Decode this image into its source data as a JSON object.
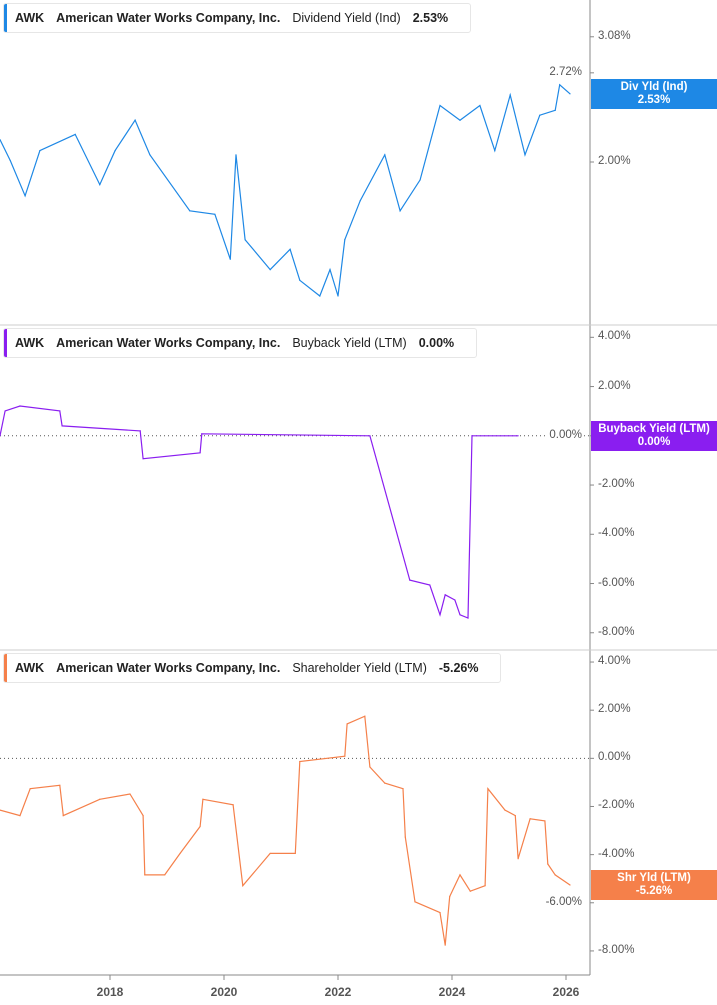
{
  "chart_data": [
    {
      "type": "line",
      "ticker": "AWK",
      "company": "American Water Works Company, Inc.",
      "metric": "Dividend Yield (Ind)",
      "value_label": "2.53%",
      "tag_label": "Div Yld (Ind)",
      "tag_value": "2.53%",
      "color": "#1e88e5",
      "scale": "log",
      "ylim": [
        1.15,
        3.25
      ],
      "yticks": [
        "3.08%",
        "2.72%",
        "2.00%"
      ],
      "ytick_values": [
        3.08,
        2.72,
        2.0
      ],
      "x": [
        2016.07,
        2016.25,
        2016.51,
        2016.77,
        2017.39,
        2017.82,
        2018.09,
        2018.44,
        2018.7,
        2019.4,
        2019.84,
        2020.11,
        2020.21,
        2020.37,
        2020.81,
        2021.16,
        2021.33,
        2021.68,
        2021.86,
        2022.0,
        2022.12,
        2022.39,
        2022.82,
        2023.09,
        2023.44,
        2023.79,
        2024.14,
        2024.49,
        2024.75,
        2025.02,
        2025.28,
        2025.54,
        2025.81,
        2025.89,
        2026.07
      ],
      "y": [
        2.16,
        2.01,
        1.78,
        2.08,
        2.2,
        1.85,
        2.08,
        2.31,
        2.05,
        1.69,
        1.67,
        1.43,
        2.05,
        1.53,
        1.38,
        1.48,
        1.33,
        1.26,
        1.38,
        1.26,
        1.53,
        1.75,
        2.05,
        1.69,
        1.88,
        2.43,
        2.31,
        2.43,
        2.08,
        2.52,
        2.05,
        2.35,
        2.39,
        2.61,
        2.53
      ]
    },
    {
      "type": "line",
      "ticker": "AWK",
      "company": "American Water Works Company, Inc.",
      "metric": "Buyback Yield (LTM)",
      "value_label": "0.00%",
      "tag_label": "Buyback Yield (LTM)",
      "tag_value": "0.00%",
      "color": "#8a1ef0",
      "ylim": [
        -8.7,
        4.5
      ],
      "zero_line": true,
      "yticks": [
        "4.00%",
        "2.00%",
        "0.00%",
        "-2.00%",
        "-4.00%",
        "-6.00%",
        "-8.00%"
      ],
      "ytick_values": [
        4,
        2,
        0,
        -2,
        -4,
        -6,
        -8
      ],
      "x": [
        2016.07,
        2016.16,
        2016.42,
        2017.12,
        2017.16,
        2018.53,
        2018.58,
        2019.58,
        2019.61,
        2022.56,
        2023.26,
        2023.61,
        2023.79,
        2023.88,
        2024.05,
        2024.14,
        2024.28,
        2024.35,
        2025.16
      ],
      "y": [
        0,
        1.01,
        1.21,
        1.01,
        0.4,
        0.2,
        -0.93,
        -0.69,
        0.08,
        0,
        -5.86,
        -6.06,
        -7.27,
        -6.46,
        -6.67,
        -7.27,
        -7.4,
        0,
        0
      ]
    },
    {
      "type": "line",
      "ticker": "AWK",
      "company": "American Water Works Company, Inc.",
      "metric": "Shareholder Yield (LTM)",
      "value_label": "-5.26%",
      "tag_label": "Shr Yld (LTM)",
      "tag_value": "-5.26%",
      "color": "#f5804a",
      "ylim": [
        -9,
        4.5
      ],
      "zero_line": true,
      "yticks": [
        "4.00%",
        "2.00%",
        "0.00%",
        "-2.00%",
        "-4.00%",
        "-6.00%",
        "-8.00%"
      ],
      "ytick_values": [
        4,
        2,
        0,
        -2,
        -4,
        -6,
        -8
      ],
      "x": [
        2016.07,
        2016.42,
        2016.6,
        2017.12,
        2017.18,
        2017.82,
        2018.35,
        2018.58,
        2018.61,
        2018.96,
        2019.23,
        2019.58,
        2019.63,
        2020.16,
        2020.33,
        2020.81,
        2021.25,
        2021.33,
        2022.12,
        2022.16,
        2022.47,
        2022.56,
        2022.82,
        2023.14,
        2023.18,
        2023.35,
        2023.79,
        2023.88,
        2023.96,
        2024.14,
        2024.32,
        2024.58,
        2024.63,
        2024.93,
        2025.11,
        2025.16,
        2025.37,
        2025.63,
        2025.68,
        2025.81,
        2026.07
      ],
      "y": [
        -2.15,
        -2.38,
        -1.26,
        -1.12,
        -2.38,
        -1.7,
        -1.48,
        -2.38,
        -4.84,
        -4.84,
        -3.95,
        -2.83,
        -1.7,
        -1.93,
        -5.29,
        -3.95,
        -3.95,
        -0.13,
        0.09,
        1.43,
        1.75,
        -0.36,
        -1.03,
        -1.26,
        -3.27,
        -5.96,
        -6.41,
        -7.76,
        -5.74,
        -4.84,
        -5.52,
        -5.29,
        -1.26,
        -2.15,
        -2.38,
        -4.17,
        -2.51,
        -2.6,
        -4.39,
        -4.84,
        -5.26
      ]
    }
  ],
  "x_axis": {
    "ticks": [
      "2018",
      "2020",
      "2022",
      "2024",
      "2026"
    ],
    "values": [
      2018,
      2020,
      2022,
      2024,
      2026
    ],
    "range": [
      2016.07,
      2026.3
    ]
  }
}
